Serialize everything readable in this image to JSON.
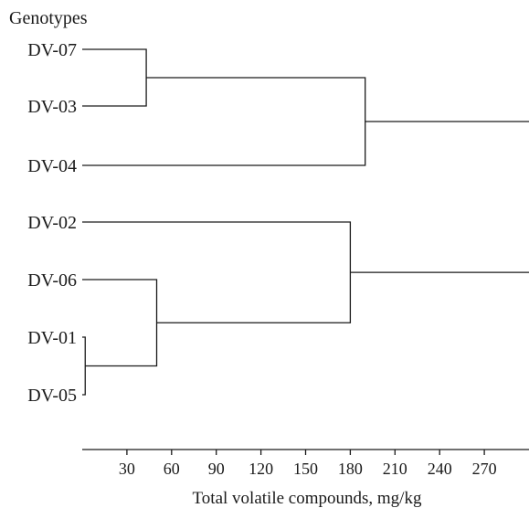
{
  "chart_data": {
    "type": "dendrogram",
    "title": "Genotypes",
    "xlabel": "Total volatile compounds, mg/kg",
    "x_ticks": [
      30,
      60,
      90,
      120,
      150,
      180,
      210,
      240,
      270
    ],
    "xlim": [
      0,
      300
    ],
    "leaves": [
      "DV-07",
      "DV-03",
      "DV-04",
      "DV-02",
      "DV-06",
      "DV-01",
      "DV-05"
    ],
    "merges": [
      {
        "a": "DV-07",
        "b": "DV-03",
        "height": 43
      },
      {
        "a": "DV-07+DV-03",
        "b": "DV-04",
        "height": 190
      },
      {
        "a": "DV-01",
        "b": "DV-05",
        "height": 2
      },
      {
        "a": "DV-06",
        "b": "DV-01+DV-05",
        "height": 50
      },
      {
        "a": "DV-02",
        "b": "DV-06+DV-01+DV-05",
        "height": 180
      }
    ],
    "top_cluster_tails": [
      {
        "cluster": "DV-07+DV-03+DV-04",
        "extends_to": 300
      },
      {
        "cluster": "DV-02+DV-06+DV-01+DV-05",
        "extends_to": 300
      }
    ]
  }
}
